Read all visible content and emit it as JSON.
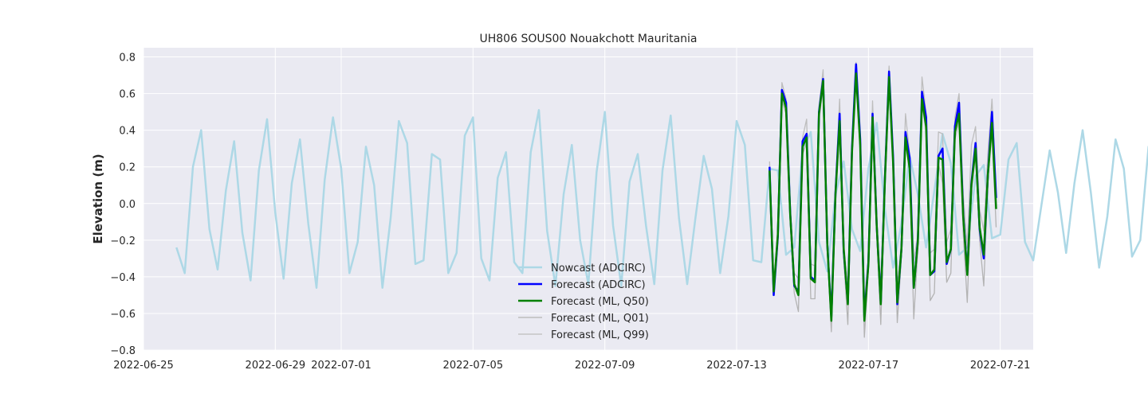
{
  "chart_data": {
    "type": "line",
    "title": "UH806 SOUS00 Nouakchott Mauritania",
    "xlabel": "",
    "ylabel": "Elevation (m)",
    "xlim": [
      "2022-06-25T00:00",
      "2022-07-22T00:00"
    ],
    "ylim": [
      -0.8,
      0.85
    ],
    "x_ticks": [
      "2022-06-25",
      "2022-06-29",
      "2022-07-01",
      "2022-07-05",
      "2022-07-09",
      "2022-07-13",
      "2022-07-17",
      "2022-07-21"
    ],
    "y_ticks": [
      -0.8,
      -0.6,
      -0.4,
      -0.2,
      0.0,
      0.2,
      0.4,
      0.6,
      0.8
    ],
    "grid": true,
    "legend_position": "lower-center",
    "series": [
      {
        "name": "Nowcast (ADCIRC)",
        "color": "#add8e6",
        "values_sampled": "every 6 hours starting 2022-06-26T00:00",
        "x_start": "2022-06-26T00:00",
        "x_step_hours": 6,
        "values": [
          -0.24,
          -0.38,
          0.2,
          0.4,
          -0.14,
          -0.36,
          0.07,
          0.34,
          -0.16,
          -0.42,
          0.18,
          0.46,
          -0.05,
          -0.41,
          0.11,
          0.35,
          -0.11,
          -0.46,
          0.13,
          0.47,
          0.19,
          -0.38,
          -0.21,
          0.31,
          0.1,
          -0.46,
          -0.08,
          0.45,
          0.33,
          -0.33,
          -0.31,
          0.27,
          0.24,
          -0.38,
          -0.27,
          0.37,
          0.47,
          -0.3,
          -0.42,
          0.14,
          0.28,
          -0.32,
          -0.38,
          0.28,
          0.51,
          -0.15,
          -0.45,
          0.05,
          0.32,
          -0.2,
          -0.44,
          0.17,
          0.5,
          -0.12,
          -0.45,
          0.12,
          0.27,
          -0.12,
          -0.44,
          0.18,
          0.48,
          -0.08,
          -0.44,
          -0.08,
          0.26,
          0.08,
          -0.38,
          -0.07,
          0.45,
          0.32,
          -0.31,
          -0.32,
          0.19,
          0.18,
          -0.28,
          -0.24,
          0.29,
          0.39,
          -0.21,
          -0.37,
          0.05,
          0.23,
          -0.14,
          -0.26,
          0.19,
          0.44,
          -0.03,
          -0.35,
          -0.11,
          0.26,
          0.05,
          -0.24,
          0.07,
          0.38,
          0.22,
          -0.28,
          -0.24,
          0.15,
          0.21,
          -0.19,
          -0.17,
          0.24,
          0.33,
          -0.21,
          -0.31,
          -0.01,
          0.29,
          0.06,
          -0.27,
          0.11,
          0.4,
          0.06,
          -0.35,
          -0.07,
          0.35,
          0.19,
          -0.29,
          -0.2,
          0.31,
          0.4,
          -0.23,
          -0.35,
          0.18,
          0.4,
          -0.21,
          -0.4,
          0.08,
          0.57,
          0.18,
          -0.46,
          -0.25,
          0.48,
          0.47,
          -0.52,
          -0.51,
          0.33,
          0.67,
          -0.06,
          -0.5,
          -0.28,
          0.42
        ]
      },
      {
        "name": "Forecast (ADCIRC)",
        "color": "#0000ff",
        "x_start": "2022-07-14T00:00",
        "x_step_hours": 3,
        "values": [
          0.2,
          -0.5,
          -0.18,
          0.62,
          0.55,
          -0.05,
          -0.45,
          -0.48,
          0.34,
          0.38,
          -0.4,
          -0.42,
          0.5,
          0.68,
          -0.22,
          -0.62,
          0.06,
          0.49,
          -0.26,
          -0.54,
          0.3,
          0.76,
          0.35,
          -0.62,
          -0.32,
          0.49,
          -0.12,
          -0.54,
          0.14,
          0.72,
          0.25,
          -0.55,
          -0.25,
          0.39,
          0.25,
          -0.46,
          -0.2,
          0.61,
          0.47,
          -0.39,
          -0.37,
          0.26,
          0.3,
          -0.33,
          -0.25,
          0.42,
          0.55,
          -0.06,
          -0.38,
          0.11,
          0.33,
          -0.14,
          -0.3,
          0.16,
          0.5,
          0.03
        ],
        "values_note": "Forecast sampled every 3h after 2022-07-14"
      },
      {
        "name": "Forecast (ML, Q50)",
        "color": "#008000",
        "x_start": "2022-07-14T00:00",
        "x_step_hours": 3,
        "values": [
          0.18,
          -0.48,
          -0.17,
          0.6,
          0.52,
          -0.06,
          -0.44,
          -0.5,
          0.31,
          0.36,
          -0.41,
          -0.43,
          0.49,
          0.67,
          -0.22,
          -0.64,
          0.05,
          0.45,
          -0.25,
          -0.55,
          0.28,
          0.71,
          0.32,
          -0.64,
          -0.33,
          0.47,
          -0.12,
          -0.55,
          0.13,
          0.69,
          0.22,
          -0.54,
          -0.25,
          0.36,
          0.19,
          -0.46,
          -0.21,
          0.57,
          0.42,
          -0.39,
          -0.36,
          0.25,
          0.24,
          -0.32,
          -0.25,
          0.39,
          0.49,
          -0.07,
          -0.39,
          0.1,
          0.3,
          -0.13,
          -0.28,
          0.16,
          0.44,
          -0.03
        ]
      },
      {
        "name": "Forecast (ML, Q01)",
        "color": "#b3b3b3",
        "x_start": "2022-07-14T00:00",
        "x_step_hours": 3,
        "values": [
          0.16,
          -0.5,
          -0.21,
          0.56,
          0.49,
          -0.1,
          -0.49,
          -0.59,
          0.27,
          0.33,
          -0.52,
          -0.52,
          0.45,
          0.64,
          -0.25,
          -0.7,
          0.02,
          0.43,
          -0.3,
          -0.66,
          0.25,
          0.68,
          0.29,
          -0.73,
          -0.36,
          0.44,
          -0.16,
          -0.66,
          0.1,
          0.66,
          0.2,
          -0.65,
          -0.29,
          0.34,
          0.18,
          -0.63,
          -0.25,
          0.54,
          0.39,
          -0.53,
          -0.49,
          0.22,
          0.11,
          -0.43,
          -0.38,
          0.35,
          0.45,
          -0.16,
          -0.54,
          0.07,
          0.26,
          -0.2,
          -0.45,
          0.12,
          0.4,
          -0.13
        ]
      },
      {
        "name": "Forecast (ML, Q99)",
        "color": "#bdbdbd",
        "x_start": "2022-07-14T00:00",
        "x_step_hours": 3,
        "values": [
          0.23,
          -0.45,
          -0.13,
          0.66,
          0.57,
          -0.02,
          -0.38,
          -0.41,
          0.36,
          0.46,
          -0.33,
          -0.34,
          0.53,
          0.73,
          -0.18,
          -0.57,
          0.08,
          0.57,
          -0.21,
          -0.47,
          0.32,
          0.77,
          0.38,
          -0.54,
          -0.29,
          0.56,
          -0.09,
          -0.44,
          0.16,
          0.75,
          0.27,
          -0.46,
          -0.21,
          0.49,
          0.27,
          -0.31,
          -0.17,
          0.69,
          0.49,
          -0.27,
          -0.25,
          0.39,
          0.38,
          -0.21,
          -0.14,
          0.47,
          0.6,
          0.05,
          -0.24,
          0.32,
          0.42,
          -0.03,
          -0.15,
          0.28,
          0.57,
          0.06
        ]
      }
    ]
  }
}
